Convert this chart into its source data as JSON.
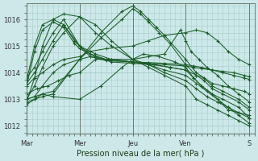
{
  "background_color": "#cce8e8",
  "grid_color": "#aacccc",
  "line_color": "#1a5c28",
  "marker": "+",
  "xlabel": "Pression niveau de la mer( hPa )",
  "xlim": [
    0,
    4.3
  ],
  "ylim": [
    1011.7,
    1016.6
  ],
  "yticks": [
    1012,
    1013,
    1014,
    1015,
    1016
  ],
  "xtick_positions": [
    0.0,
    1.0,
    2.0,
    3.0,
    4.2
  ],
  "xtick_labels": [
    "Mar",
    "Mer",
    "Jeu",
    "Ven",
    "S"
  ],
  "series": [
    {
      "x": [
        0.0,
        0.15,
        0.3,
        0.5,
        0.7,
        1.0,
        1.3,
        1.6,
        2.0,
        2.3,
        2.6,
        3.0,
        3.2,
        3.4,
        3.6,
        3.8,
        4.0,
        4.2
      ],
      "y": [
        1013.0,
        1013.5,
        1014.2,
        1015.0,
        1015.5,
        1016.1,
        1015.8,
        1015.2,
        1014.5,
        1014.2,
        1013.9,
        1013.5,
        1013.0,
        1012.8,
        1012.6,
        1012.4,
        1012.2,
        1012.0
      ]
    },
    {
      "x": [
        0.0,
        0.15,
        0.3,
        0.5,
        0.7,
        1.0,
        1.3,
        1.6,
        2.0,
        2.3,
        2.6,
        3.0,
        3.2,
        3.4,
        3.6,
        3.8,
        4.0,
        4.2
      ],
      "y": [
        1012.9,
        1013.8,
        1015.0,
        1016.0,
        1016.2,
        1016.1,
        1015.5,
        1015.0,
        1014.5,
        1014.3,
        1014.0,
        1013.7,
        1013.4,
        1013.1,
        1012.9,
        1012.7,
        1012.5,
        1012.3
      ]
    },
    {
      "x": [
        0.0,
        0.15,
        0.3,
        0.5,
        0.7,
        1.0,
        1.2,
        1.5,
        2.0,
        2.3,
        2.6,
        3.0,
        3.2,
        3.4,
        3.6,
        3.8,
        4.0,
        4.2
      ],
      "y": [
        1013.5,
        1013.8,
        1014.0,
        1014.3,
        1014.5,
        1014.6,
        1014.8,
        1014.9,
        1015.0,
        1015.2,
        1015.4,
        1015.5,
        1015.6,
        1015.5,
        1015.2,
        1014.8,
        1014.5,
        1014.3
      ]
    },
    {
      "x": [
        0.0,
        0.15,
        0.3,
        0.5,
        0.7,
        1.0,
        1.2,
        1.5,
        2.0,
        2.3,
        2.6,
        3.0,
        3.2,
        3.4,
        3.6,
        3.8,
        4.0,
        4.2
      ],
      "y": [
        1013.0,
        1013.1,
        1013.5,
        1014.0,
        1014.3,
        1014.5,
        1014.6,
        1014.5,
        1014.4,
        1014.3,
        1014.1,
        1013.9,
        1013.6,
        1013.3,
        1013.0,
        1012.7,
        1012.4,
        1012.1
      ]
    },
    {
      "x": [
        0.0,
        0.15,
        0.3,
        0.5,
        0.7,
        1.0,
        1.2,
        1.5,
        2.0,
        2.3,
        2.6,
        3.0,
        3.15,
        3.3,
        3.5,
        3.7,
        3.9,
        4.1,
        4.2
      ],
      "y": [
        1013.8,
        1014.2,
        1014.8,
        1015.5,
        1016.0,
        1015.0,
        1014.7,
        1014.5,
        1014.4,
        1014.35,
        1014.3,
        1014.25,
        1014.2,
        1014.15,
        1014.1,
        1014.05,
        1014.0,
        1013.9,
        1013.85
      ]
    },
    {
      "x": [
        0.0,
        0.15,
        0.3,
        0.5,
        0.7,
        1.0,
        1.2,
        1.5,
        2.0,
        2.3,
        2.6,
        3.0,
        3.15,
        3.3,
        3.5,
        3.7,
        3.9,
        4.1,
        4.2
      ],
      "y": [
        1013.6,
        1014.0,
        1014.5,
        1015.2,
        1015.8,
        1015.0,
        1014.6,
        1014.45,
        1014.4,
        1014.38,
        1014.35,
        1014.3,
        1014.25,
        1014.2,
        1014.1,
        1014.0,
        1013.9,
        1013.8,
        1013.75
      ]
    },
    {
      "x": [
        0.0,
        0.15,
        0.3,
        0.5,
        1.0,
        1.4,
        1.8,
        2.0,
        2.15,
        2.3,
        2.45,
        2.6,
        3.0,
        3.2,
        3.35,
        3.5,
        3.7,
        4.0,
        4.2
      ],
      "y": [
        1013.0,
        1013.1,
        1013.2,
        1013.3,
        1014.5,
        1015.5,
        1016.3,
        1016.5,
        1016.3,
        1016.0,
        1015.7,
        1015.4,
        1014.5,
        1014.0,
        1013.8,
        1013.5,
        1013.3,
        1013.0,
        1012.7
      ]
    },
    {
      "x": [
        0.0,
        0.15,
        0.3,
        0.5,
        1.0,
        1.4,
        1.8,
        2.0,
        2.15,
        2.3,
        2.5,
        2.7,
        3.0,
        3.2,
        3.35,
        3.5,
        3.7,
        4.0,
        4.2
      ],
      "y": [
        1012.9,
        1013.0,
        1013.1,
        1013.2,
        1014.5,
        1015.3,
        1016.0,
        1016.4,
        1016.2,
        1015.9,
        1015.5,
        1015.1,
        1014.3,
        1013.9,
        1013.7,
        1013.4,
        1013.2,
        1012.9,
        1012.6
      ]
    },
    {
      "x": [
        0.0,
        0.15,
        0.3,
        0.5,
        0.7,
        0.9,
        1.0,
        1.3,
        1.6,
        2.0,
        2.4,
        2.7,
        3.0,
        3.2,
        3.35,
        3.5,
        3.7,
        3.9,
        4.1,
        4.2
      ],
      "y": [
        1013.7,
        1015.0,
        1015.8,
        1016.0,
        1015.8,
        1015.2,
        1015.0,
        1014.7,
        1014.5,
        1014.4,
        1014.3,
        1014.2,
        1014.1,
        1013.9,
        1013.8,
        1013.6,
        1013.5,
        1013.4,
        1013.3,
        1013.2
      ]
    },
    {
      "x": [
        0.0,
        0.15,
        0.3,
        0.5,
        0.7,
        0.9,
        1.0,
        1.3,
        1.6,
        2.0,
        2.4,
        2.7,
        3.0,
        3.15,
        3.3,
        3.5,
        3.65,
        3.8,
        4.0,
        4.2
      ],
      "y": [
        1013.5,
        1014.8,
        1015.6,
        1015.9,
        1015.7,
        1015.1,
        1014.9,
        1014.6,
        1014.4,
        1014.35,
        1014.3,
        1014.2,
        1014.1,
        1013.8,
        1013.5,
        1013.2,
        1012.9,
        1012.6,
        1012.5,
        1012.4
      ]
    },
    {
      "x": [
        0.0,
        0.15,
        0.3,
        0.5,
        1.0,
        1.4,
        1.8,
        2.0,
        2.2,
        2.5,
        2.8,
        3.0,
        3.15,
        3.3,
        3.5,
        3.7,
        4.0,
        4.2
      ],
      "y": [
        1012.8,
        1013.0,
        1013.2,
        1013.1,
        1013.0,
        1013.5,
        1014.2,
        1014.5,
        1014.7,
        1014.6,
        1014.4,
        1014.2,
        1013.8,
        1013.5,
        1013.2,
        1013.0,
        1012.7,
        1012.3
      ]
    },
    {
      "x": [
        0.0,
        0.2,
        0.4,
        0.6,
        0.8,
        1.0,
        1.3,
        1.6,
        2.0,
        2.3,
        2.6,
        2.9,
        3.0,
        3.1,
        3.25,
        3.4,
        3.6,
        3.8,
        4.0,
        4.2
      ],
      "y": [
        1013.2,
        1013.4,
        1013.5,
        1013.7,
        1013.9,
        1014.0,
        1014.5,
        1014.5,
        1014.5,
        1014.6,
        1014.7,
        1015.6,
        1015.2,
        1014.8,
        1014.5,
        1014.2,
        1013.9,
        1013.5,
        1013.2,
        1012.9
      ]
    }
  ]
}
